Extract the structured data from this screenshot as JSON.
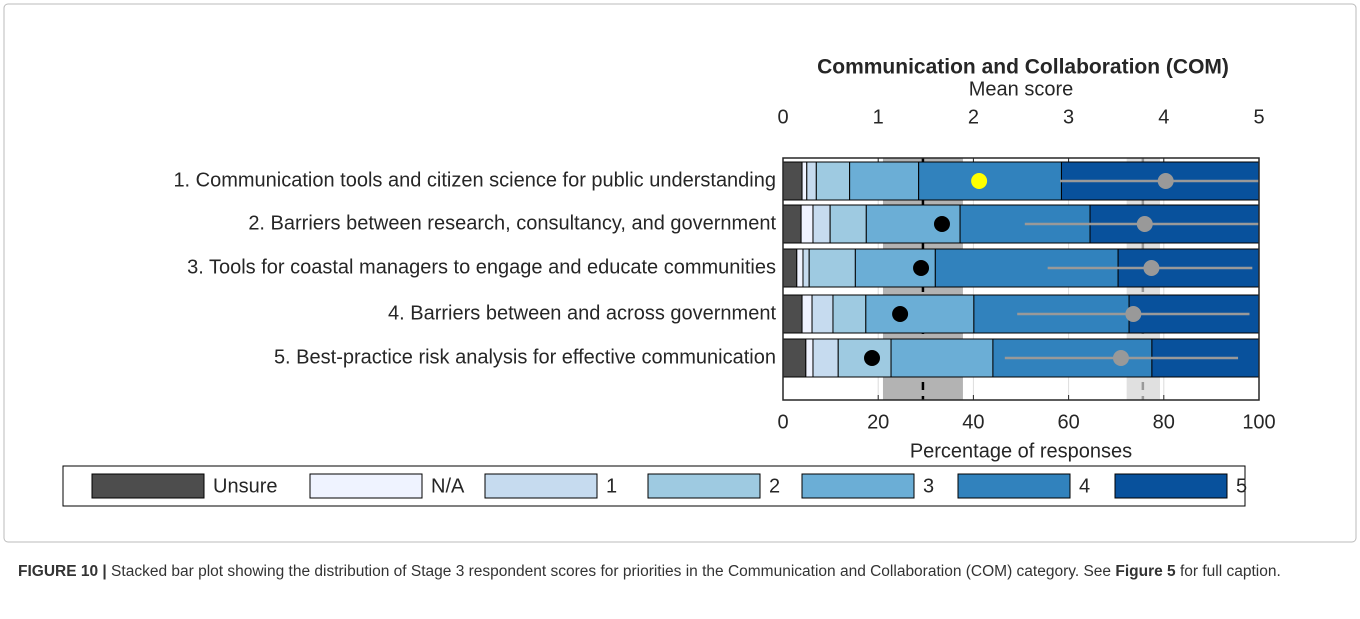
{
  "chart_data": {
    "type": "bar",
    "orientation": "horizontal",
    "stacked": true,
    "title": "Communication and Collaboration (COM)",
    "xlabel": "Percentage of responses",
    "x2label": "Mean score",
    "categories": [
      "1. Communication tools and citizen science for public understanding",
      "2. Barriers between research, consultancy, and government",
      "3. Tools for coastal managers to engage and educate communities",
      "4. Barriers between and across government",
      "5. Best-practice risk analysis for effective communication"
    ],
    "series": [
      {
        "name": "Unsure",
        "color": "#4d4d4d",
        "values": [
          4,
          3.8,
          2.9,
          4,
          4.8
        ]
      },
      {
        "name": "N/A",
        "color": "#eff3ff",
        "values": [
          1,
          2.5,
          1.3,
          2.1,
          1.5
        ]
      },
      {
        "name": "1",
        "color": "#c6dbef",
        "values": [
          2,
          3.6,
          1.3,
          4.4,
          5.3
        ]
      },
      {
        "name": "2",
        "color": "#9ecae1",
        "values": [
          7,
          7.6,
          9.7,
          6.9,
          11.1
        ]
      },
      {
        "name": "3",
        "color": "#6baed6",
        "values": [
          14.5,
          19.7,
          16.8,
          22.7,
          21.4
        ]
      },
      {
        "name": "4",
        "color": "#3182bd",
        "values": [
          30,
          27.3,
          38.4,
          32.6,
          33.4
        ]
      },
      {
        "name": "5",
        "color": "#08519c",
        "values": [
          41.5,
          35.5,
          29.6,
          27.3,
          22.5
        ]
      }
    ],
    "xlim": [
      0,
      100
    ],
    "xticks": [
      0,
      20,
      40,
      60,
      80,
      100
    ],
    "x2lim": [
      0,
      5
    ],
    "x2ticks": [
      0,
      1,
      2,
      3,
      4,
      5
    ],
    "grid": true,
    "mean_scores": {
      "color": "#999999",
      "values": [
        4.02,
        3.8,
        3.87,
        3.68,
        3.55
      ],
      "ci": [
        [
          2.91,
          5
        ],
        [
          2.54,
          5
        ],
        [
          2.78,
          4.93
        ],
        [
          2.46,
          4.9
        ],
        [
          2.33,
          4.78
        ]
      ]
    },
    "points": {
      "values": [
        41.2,
        33.4,
        29,
        24.6,
        18.7
      ],
      "colors": [
        "#ffff00",
        "#000000",
        "#000000",
        "#000000",
        "#000000"
      ]
    },
    "percent_band": {
      "range": [
        21,
        37.8
      ],
      "line": 29.4,
      "color": "#b3b3b3",
      "line_color": "#000000"
    },
    "score_band": {
      "range": [
        3.61,
        3.96
      ],
      "line": 3.78,
      "color": "#e0e0e0",
      "line_color": "#999999"
    }
  },
  "caption": {
    "label": "FIGURE 10 |",
    "text1": " Stacked bar plot showing the distribution of Stage 3 respondent scores for priorities in the Communication and Collaboration (COM) category. See ",
    "ref": "Figure 5",
    "text2": " for full caption."
  }
}
